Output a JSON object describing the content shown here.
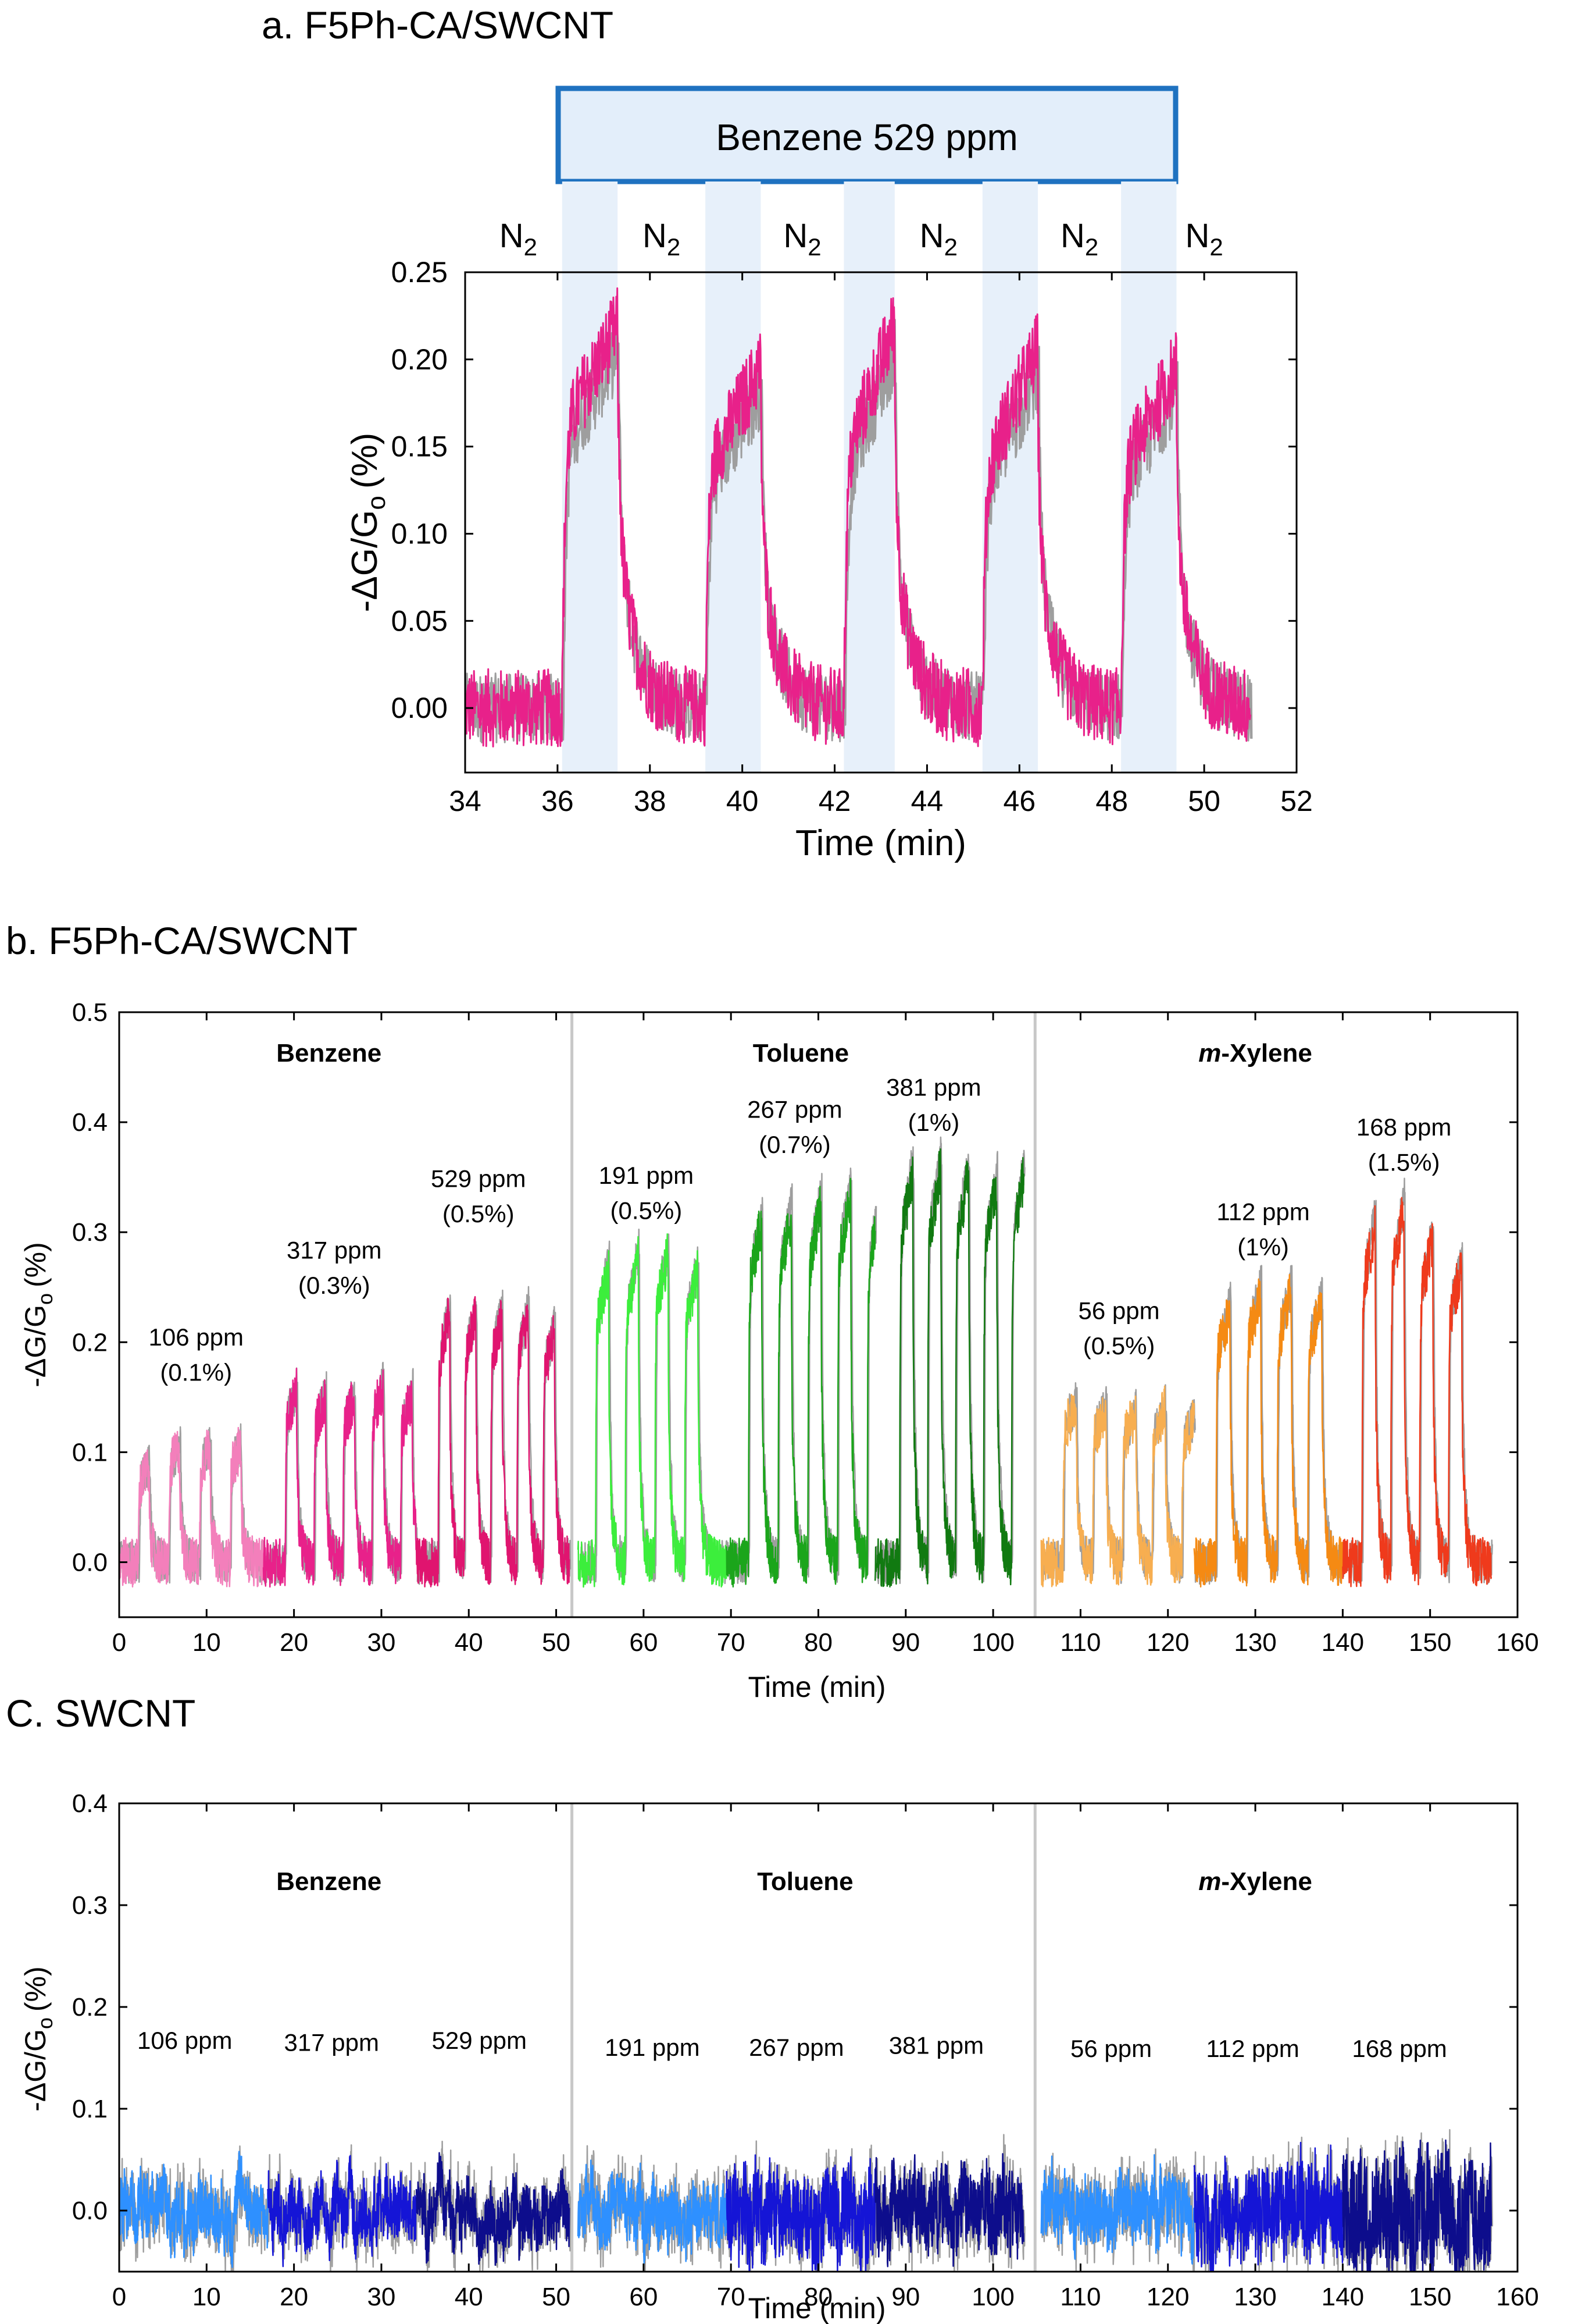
{
  "colors": {
    "gray_trace": "#9e9e9e",
    "shade": "#e7f0fa",
    "arrow_blue": "#1f72c0",
    "box_fill": "#e3eefa",
    "separator": "#c8c8c8"
  },
  "chart_data": [
    {
      "id": "a",
      "type": "line",
      "title": "a. F5Ph-CA/SWCNT",
      "xlabel": "Time (min)",
      "ylabel": "-ΔG/G",
      "ylabel_sub": "o",
      "ylabel_unit": "(%)",
      "xlim": [
        34,
        52
      ],
      "ylim": [
        -0.037,
        0.25
      ],
      "xticks": [
        "34",
        "36",
        "38",
        "40",
        "42",
        "44",
        "46",
        "48",
        "50",
        "52"
      ],
      "yticks": [
        "0.00",
        "0.05",
        "0.10",
        "0.15",
        "0.20",
        "0.25"
      ],
      "xtick_values": [
        34,
        36,
        38,
        40,
        42,
        44,
        46,
        48,
        50,
        52
      ],
      "ytick_values": [
        0,
        0.05,
        0.1,
        0.15,
        0.2,
        0.25
      ],
      "exposure_label": "Benzene 529 ppm",
      "n2_label": "N",
      "n2_sub": "2",
      "n2_count": 6,
      "exposures": [
        [
          36.1,
          37.3
        ],
        [
          39.2,
          40.4
        ],
        [
          42.2,
          43.3
        ],
        [
          45.2,
          46.4
        ],
        [
          48.2,
          49.4
        ]
      ],
      "series": [
        {
          "name": "F5Ph-CA/SWCNT benzene 529 ppm",
          "color": "#e8218a",
          "x_range": [
            34.0,
            51.0
          ],
          "pulses": [
            [
              36.1,
              37.3,
              0.21,
              0.23
            ],
            [
              39.2,
              40.4,
              0.18,
              0.205
            ],
            [
              42.2,
              43.3,
              0.19,
              0.23
            ],
            [
              45.2,
              46.4,
              0.18,
              0.215
            ],
            [
              48.2,
              49.4,
              0.18,
              0.205
            ]
          ]
        }
      ]
    },
    {
      "id": "b",
      "type": "line",
      "title": "b. F5Ph-CA/SWCNT",
      "xlabel": "Time (min)",
      "ylabel": "-ΔG/G",
      "ylabel_sub": "o",
      "ylabel_unit": "(%)",
      "xlim": [
        0,
        160
      ],
      "ylim": [
        -0.05,
        0.5
      ],
      "xticks": [
        "0",
        "10",
        "20",
        "30",
        "40",
        "50",
        "60",
        "70",
        "80",
        "90",
        "100",
        "110",
        "120",
        "130",
        "140",
        "150",
        "160"
      ],
      "yticks": [
        "0.0",
        "0.1",
        "0.2",
        "0.3",
        "0.4",
        "0.5"
      ],
      "xtick_values": [
        0,
        10,
        20,
        30,
        40,
        50,
        60,
        70,
        80,
        90,
        100,
        110,
        120,
        130,
        140,
        150,
        160
      ],
      "ytick_values": [
        0,
        0.1,
        0.2,
        0.3,
        0.4,
        0.5
      ],
      "separators": [
        51.8,
        104.8
      ],
      "solvents": [
        {
          "label": "Benzene",
          "x": 24
        },
        {
          "label": "Toluene",
          "x": 78
        },
        {
          "label": "m-Xylene",
          "italic_prefix": "m",
          "rest": "-Xylene",
          "x": 130
        }
      ],
      "annotations": [
        {
          "line1": "106 ppm",
          "line2": "(0.1%)",
          "x": 8.8,
          "y1": 0.197,
          "y2": 0.165
        },
        {
          "line1": "317 ppm",
          "line2": "(0.3%)",
          "x": 24.6,
          "y1": 0.276,
          "y2": 0.244
        },
        {
          "line1": "529 ppm",
          "line2": "(0.5%)",
          "x": 41.1,
          "y1": 0.341,
          "y2": 0.309
        },
        {
          "line1": "191 ppm",
          "line2": "(0.5%)",
          "x": 60.3,
          "y1": 0.344,
          "y2": 0.312
        },
        {
          "line1": "267 ppm",
          "line2": "(0.7%)",
          "x": 77.3,
          "y1": 0.404,
          "y2": 0.372
        },
        {
          "line1": "381 ppm",
          "line2": "(1%)",
          "x": 93.2,
          "y1": 0.424,
          "y2": 0.392
        },
        {
          "line1": "56 ppm",
          "line2": "(0.5%)",
          "x": 114.4,
          "y1": 0.221,
          "y2": 0.189
        },
        {
          "line1": "112 ppm",
          "line2": "(1%)",
          "x": 130.9,
          "y1": 0.311,
          "y2": 0.279
        },
        {
          "line1": "168 ppm",
          "line2": "(1.5%)",
          "x": 147.0,
          "y1": 0.388,
          "y2": 0.356
        }
      ],
      "series": [
        {
          "name": "Benzene 106 ppm",
          "color": "#f37fbb",
          "x_range": [
            0,
            16.5
          ],
          "pulse_start": 2.2,
          "period": 3.5,
          "count": 4,
          "width": 1.2,
          "peaks": [
            0.085,
            0.105,
            0.105,
            0.105
          ]
        },
        {
          "name": "Benzene 317 ppm",
          "color": "#e8218a",
          "x_range": [
            16.5,
            34.0
          ],
          "pulse_start": 19.0,
          "period": 3.3,
          "count": 5,
          "width": 1.3,
          "peaks": [
            0.155,
            0.15,
            0.15,
            0.16,
            0.15
          ]
        },
        {
          "name": "Benzene 529 ppm",
          "color": "#e0146f",
          "x_range": [
            34.0,
            51.5
          ],
          "pulse_start": 36.5,
          "period": 3.0,
          "count": 5,
          "width": 1.3,
          "peaks": [
            0.225,
            0.225,
            0.225,
            0.225,
            0.21
          ]
        },
        {
          "name": "Toluene 191 ppm",
          "color": "#3cee3c",
          "x_range": [
            52.5,
            69.5
          ],
          "pulse_start": 54.5,
          "period": 3.4,
          "count": 4,
          "width": 1.5,
          "peaks": [
            0.265,
            0.275,
            0.28,
            0.265
          ]
        },
        {
          "name": "Toluene 267 ppm",
          "color": "#1ba51b",
          "x_range": [
            69.5,
            86.5
          ],
          "pulse_start": 72.0,
          "period": 3.4,
          "count": 5,
          "width": 1.5,
          "peaks": [
            0.31,
            0.315,
            0.325,
            0.335,
            0.325
          ]
        },
        {
          "name": "Toluene 381 ppm",
          "color": "#117a11",
          "x_range": [
            86.5,
            103.5
          ],
          "pulse_start": 89.3,
          "period": 3.2,
          "count": 5,
          "width": 1.5,
          "peaks": [
            0.355,
            0.36,
            0.355,
            0.345,
            0.355
          ]
        },
        {
          "name": "m-Xylene 56 ppm",
          "color": "#f7ae50",
          "x_range": [
            105.5,
            123.0
          ],
          "pulse_start": 108.0,
          "period": 3.4,
          "count": 5,
          "width": 1.5,
          "peaks": [
            0.145,
            0.14,
            0.135,
            0.14,
            0.13
          ]
        },
        {
          "name": "m-Xylene 112 ppm",
          "color": "#f58a13",
          "x_range": [
            123.0,
            140.0
          ],
          "pulse_start": 125.5,
          "period": 3.5,
          "count": 4,
          "width": 1.6,
          "peaks": [
            0.23,
            0.245,
            0.245,
            0.235
          ]
        },
        {
          "name": "m-Xylene 168 ppm",
          "color": "#ef3a1c",
          "x_range": [
            140.0,
            157.0
          ],
          "pulse_start": 142.2,
          "period": 3.3,
          "count": 4,
          "width": 1.5,
          "peaks": [
            0.305,
            0.32,
            0.295,
            0.27
          ]
        }
      ]
    },
    {
      "id": "c",
      "type": "line",
      "title": "C. SWCNT",
      "xlabel": "Time (min)",
      "ylabel": "-ΔG/G",
      "ylabel_sub": "o",
      "ylabel_unit": "(%)",
      "xlim": [
        0,
        160
      ],
      "ylim": [
        -0.06,
        0.4
      ],
      "xticks": [
        "0",
        "10",
        "20",
        "30",
        "40",
        "50",
        "60",
        "70",
        "80",
        "90",
        "100",
        "110",
        "120",
        "130",
        "140",
        "150",
        "160"
      ],
      "yticks": [
        "0.0",
        "0.1",
        "0.2",
        "0.3",
        "0.4"
      ],
      "xtick_values": [
        0,
        10,
        20,
        30,
        40,
        50,
        60,
        70,
        80,
        90,
        100,
        110,
        120,
        130,
        140,
        150,
        160
      ],
      "ytick_values": [
        0,
        0.1,
        0.2,
        0.3,
        0.4
      ],
      "separators": [
        51.8,
        104.8
      ],
      "solvents": [
        {
          "label": "Benzene",
          "x": 24
        },
        {
          "label": "Toluene",
          "x": 78.5
        },
        {
          "label": "m-Xylene",
          "italic_prefix": "m",
          "rest": "-Xylene",
          "x": 130
        }
      ],
      "annotations": [
        {
          "line1": "106 ppm",
          "x": 7.5,
          "y1": 0.159
        },
        {
          "line1": "317 ppm",
          "x": 24.3,
          "y1": 0.157
        },
        {
          "line1": "529 ppm",
          "x": 41.2,
          "y1": 0.159
        },
        {
          "line1": "191 ppm",
          "x": 61.0,
          "y1": 0.152
        },
        {
          "line1": "267 ppm",
          "x": 77.5,
          "y1": 0.152
        },
        {
          "line1": "381 ppm",
          "x": 93.5,
          "y1": 0.154
        },
        {
          "line1": "56 ppm",
          "x": 113.5,
          "y1": 0.151
        },
        {
          "line1": "112 ppm",
          "x": 129.7,
          "y1": 0.151
        },
        {
          "line1": "168 ppm",
          "x": 146.5,
          "y1": 0.151
        }
      ],
      "series": [
        {
          "name": "Benzene 106 ppm",
          "color": "#2e90ff",
          "x_range": [
            0,
            17.0
          ],
          "amp": 0.045
        },
        {
          "name": "Benzene 317 ppm",
          "color": "#1515d6",
          "x_range": [
            17.0,
            34.0
          ],
          "amp": 0.045
        },
        {
          "name": "Benzene 529 ppm",
          "color": "#0d0d8c",
          "x_range": [
            34.0,
            51.5
          ],
          "amp": 0.045
        },
        {
          "name": "Toluene 191 ppm",
          "color": "#2e90ff",
          "x_range": [
            52.5,
            69.5
          ],
          "amp": 0.045
        },
        {
          "name": "Toluene 267 ppm",
          "color": "#1515d6",
          "x_range": [
            69.5,
            86.5
          ],
          "amp": 0.07
        },
        {
          "name": "Toluene 381 ppm",
          "color": "#0d0d8c",
          "x_range": [
            86.5,
            103.5
          ],
          "amp": 0.06
        },
        {
          "name": "m-Xylene 56 ppm",
          "color": "#2e90ff",
          "x_range": [
            105.5,
            123.0
          ],
          "amp": 0.05
        },
        {
          "name": "m-Xylene 112 ppm",
          "color": "#1515d6",
          "x_range": [
            123.0,
            140.0
          ],
          "amp": 0.07
        },
        {
          "name": "m-Xylene 168 ppm",
          "color": "#0d0d8c",
          "x_range": [
            140.0,
            157.0
          ],
          "amp": 0.09
        }
      ]
    }
  ]
}
